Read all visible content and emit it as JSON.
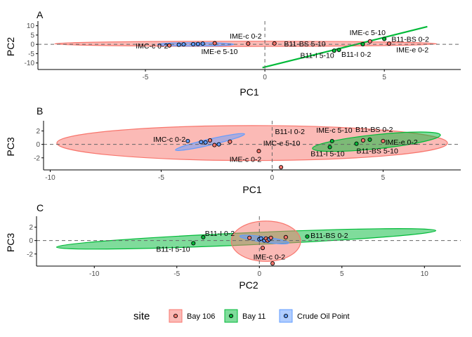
{
  "colors": {
    "bay106_fill": "#F8766D",
    "bay11_fill": "#00BA38",
    "crude_fill": "#619CFF",
    "bay106_line": "#F8766D",
    "bay11_line": "#00BA38",
    "crude_line": "#619CFF",
    "axis": "#000000",
    "tick_label": "#4d4d4d",
    "zero_line": "#666666"
  },
  "legend": {
    "title": "site",
    "items": [
      {
        "label": "Bay 106",
        "color": "#F8766D"
      },
      {
        "label": "Bay 11",
        "color": "#00BA38"
      },
      {
        "label": "Crude Oil Point",
        "color": "#619CFF"
      }
    ]
  },
  "chart_data": [
    {
      "tag": "A",
      "type": "scatter",
      "xlabel": "PC1",
      "ylabel": "PC2",
      "xlim": [
        -9.5,
        8.2
      ],
      "ylim": [
        -13.5,
        11
      ],
      "xticks": [
        -5,
        0,
        5
      ],
      "yticks": [
        10,
        5,
        0,
        -5,
        -10
      ],
      "grid": false,
      "zero_lines": true,
      "ellipses": [
        {
          "site": "Bay 106",
          "cx": -0.8,
          "cy": 0.3,
          "rx": 8.0,
          "ry": 1.4,
          "angle": 0
        },
        {
          "site": "Crude Oil Point",
          "cx": -2.9,
          "cy": 0.0,
          "rx": 1.6,
          "ry": 0.9,
          "angle": 0
        },
        {
          "site": "Bay 11",
          "cx": 0,
          "cy": 0,
          "rx": 0,
          "ry": 0,
          "angle": 0
        }
      ],
      "lines": [
        {
          "site": "Bay 11",
          "x": [
            -0.1,
            6.8
          ],
          "y": [
            -12.5,
            9.5
          ]
        }
      ],
      "points": [
        {
          "site": "Bay 106",
          "x": -4.0,
          "y": -0.6
        },
        {
          "site": "Crude Oil Point",
          "x": -3.6,
          "y": -0.2
        },
        {
          "site": "Crude Oil Point",
          "x": -3.4,
          "y": 0.0
        },
        {
          "site": "Crude Oil Point",
          "x": -3.0,
          "y": 0.1
        },
        {
          "site": "Crude Oil Point",
          "x": -2.8,
          "y": 0.2
        },
        {
          "site": "Crude Oil Point",
          "x": -2.6,
          "y": 0.4
        },
        {
          "site": "Bay 106",
          "x": -2.1,
          "y": 0.6
        },
        {
          "site": "Bay 106",
          "x": -0.7,
          "y": 0.4
        },
        {
          "site": "Bay 106",
          "x": 0.4,
          "y": 0.5
        },
        {
          "site": "Bay 11",
          "x": 2.9,
          "y": -3.4
        },
        {
          "site": "Bay 11",
          "x": 3.1,
          "y": -3.0
        },
        {
          "site": "Bay 11",
          "x": 4.1,
          "y": 0.1
        },
        {
          "site": "Bay 106",
          "x": 4.4,
          "y": 1.6
        },
        {
          "site": "Bay 11",
          "x": 5.0,
          "y": 2.9
        },
        {
          "site": "Bay 106",
          "x": 5.2,
          "y": 0.4
        }
      ],
      "annotations": [
        {
          "text": "IMC-c 0-2",
          "x": -4.05,
          "y": -0.6,
          "anchor": "end",
          "dy": 4
        },
        {
          "text": "IME-c 0-2",
          "x": -0.8,
          "y": 0.8,
          "anchor": "middle",
          "dy": -6
        },
        {
          "text": "IME-e 5-10",
          "x": -1.9,
          "y": -1.4,
          "anchor": "middle",
          "dy": 10
        },
        {
          "text": "B11-BS 5-10",
          "x": 0.8,
          "y": 0.5,
          "anchor": "start",
          "dy": 4
        },
        {
          "text": "IME-c 5-10",
          "x": 4.3,
          "y": 2.0,
          "anchor": "middle",
          "dy": -8
        },
        {
          "text": "B11-BS 0-2",
          "x": 5.3,
          "y": 2.9,
          "anchor": "start",
          "dy": 4
        },
        {
          "text": "IME-e 0-2",
          "x": 5.5,
          "y": 0.3,
          "anchor": "start",
          "dy": 12
        },
        {
          "text": "B11-I 5-10",
          "x": 2.9,
          "y": -3.6,
          "anchor": "end",
          "dy": 10
        },
        {
          "text": "B11-I 0-2",
          "x": 3.2,
          "y": -3.0,
          "anchor": "start",
          "dy": 10
        }
      ]
    },
    {
      "tag": "B",
      "type": "scatter",
      "xlabel": "PC1",
      "ylabel": "PC3",
      "xlim": [
        -10.3,
        8.5
      ],
      "ylim": [
        -3.8,
        3.1
      ],
      "xticks": [
        -10,
        -5,
        0,
        5
      ],
      "yticks": [
        2,
        0,
        -2
      ],
      "grid": false,
      "zero_lines": true,
      "ellipses": [
        {
          "site": "Bay 106",
          "cx": -0.9,
          "cy": 0.2,
          "rx": 8.8,
          "ry": 2.6,
          "angle": 0
        },
        {
          "site": "Bay 11",
          "cx": 4.7,
          "cy": 0.4,
          "rx": 2.9,
          "ry": 1.05,
          "angle": 6
        },
        {
          "site": "Crude Oil Point",
          "cx": -2.8,
          "cy": 0.35,
          "rx": 1.6,
          "ry": 0.45,
          "angle": 13
        }
      ],
      "lines": [],
      "points": [
        {
          "site": "Crude Oil Point",
          "x": -3.8,
          "y": 0.5
        },
        {
          "site": "Crude Oil Point",
          "x": -3.2,
          "y": 0.35
        },
        {
          "site": "Crude Oil Point",
          "x": -3.0,
          "y": 0.3
        },
        {
          "site": "Bay 106",
          "x": -2.8,
          "y": 0.6
        },
        {
          "site": "Bay 106",
          "x": -2.6,
          "y": -0.1
        },
        {
          "site": "Crude Oil Point",
          "x": -2.4,
          "y": 0.0
        },
        {
          "site": "Bay 106",
          "x": -1.9,
          "y": 0.4
        },
        {
          "site": "Bay 106",
          "x": -0.6,
          "y": -1.0
        },
        {
          "site": "Bay 106",
          "x": 0.4,
          "y": -3.4
        },
        {
          "site": "Bay 11",
          "x": 2.6,
          "y": -0.4
        },
        {
          "site": "Bay 11",
          "x": 2.7,
          "y": 0.5
        },
        {
          "site": "Bay 11",
          "x": 3.8,
          "y": 0.1
        },
        {
          "site": "Bay 106",
          "x": 4.1,
          "y": 0.6
        },
        {
          "site": "Bay 11",
          "x": 4.4,
          "y": 0.7
        },
        {
          "site": "Bay 106",
          "x": 5.0,
          "y": 0.5
        }
      ],
      "annotations": [
        {
          "text": "IMC-c 0-2",
          "x": -3.9,
          "y": 0.5,
          "anchor": "end",
          "dy": 1
        },
        {
          "text": "B11-I 0-2",
          "x": 0.8,
          "y": 0.9,
          "anchor": "middle",
          "dy": -6
        },
        {
          "text": "IME-c 5-10",
          "x": 2.8,
          "y": 1.1,
          "anchor": "middle",
          "dy": -6
        },
        {
          "text": "B11-BS 0-2",
          "x": 4.6,
          "y": 1.2,
          "anchor": "middle",
          "dy": -6
        },
        {
          "text": "IME-e 0-2",
          "x": 5.1,
          "y": 0.4,
          "anchor": "start",
          "dy": 4
        },
        {
          "text": "IMC-e 5-10",
          "x": -0.4,
          "y": -0.8,
          "anchor": "start",
          "dy": -6
        },
        {
          "text": "B11-I 5-10",
          "x": 2.5,
          "y": -0.7,
          "anchor": "middle",
          "dy": 10
        },
        {
          "text": "B11-BS 5-10",
          "x": 3.8,
          "y": -0.3,
          "anchor": "start",
          "dy": 10
        },
        {
          "text": "IME-c 0-2",
          "x": -1.2,
          "y": -2.2,
          "anchor": "middle",
          "dy": 4
        }
      ]
    },
    {
      "tag": "C",
      "type": "scatter",
      "xlabel": "PC2",
      "ylabel": "PC3",
      "xlim": [
        -13.5,
        12.2
      ],
      "ylim": [
        -3.8,
        3.2
      ],
      "xticks": [
        -10,
        -5,
        0,
        5,
        10
      ],
      "yticks": [
        2,
        0,
        -2
      ],
      "grid": false,
      "zero_lines": true,
      "ellipses": [
        {
          "site": "Bay 11",
          "cx": -0.8,
          "cy": 0.25,
          "rx": 11.5,
          "ry": 0.9,
          "angle": 2.5
        },
        {
          "site": "Bay 106",
          "cx": 0.4,
          "cy": -0.1,
          "rx": 2.1,
          "ry": 3.0,
          "angle": 0
        },
        {
          "site": "Crude Oil Point",
          "cx": 0.3,
          "cy": 0.15,
          "rx": 1.5,
          "ry": 0.4,
          "angle": -8
        }
      ],
      "lines": [],
      "points": [
        {
          "site": "Bay 11",
          "x": -4.0,
          "y": -0.4
        },
        {
          "site": "Bay 11",
          "x": -3.4,
          "y": 0.5
        },
        {
          "site": "Bay 106",
          "x": -0.6,
          "y": 0.4
        },
        {
          "site": "Crude Oil Point",
          "x": 0.0,
          "y": 0.2
        },
        {
          "site": "Crude Oil Point",
          "x": 0.1,
          "y": 0.3
        },
        {
          "site": "Bay 106",
          "x": 0.2,
          "y": -1.1
        },
        {
          "site": "Crude Oil Point",
          "x": 0.3,
          "y": 0.0
        },
        {
          "site": "Bay 106",
          "x": 0.4,
          "y": 0.3
        },
        {
          "site": "Bay 106",
          "x": 0.5,
          "y": 0.0
        },
        {
          "site": "Crude Oil Point",
          "x": 0.6,
          "y": 0.2
        },
        {
          "site": "Bay 106",
          "x": 0.7,
          "y": 0.4
        },
        {
          "site": "Bay 106",
          "x": 0.8,
          "y": -3.4
        },
        {
          "site": "Bay 106",
          "x": 1.6,
          "y": 0.5
        },
        {
          "site": "Bay 11",
          "x": 2.9,
          "y": 0.6
        }
      ],
      "annotations": [
        {
          "text": "B11-I 0-2",
          "x": -3.3,
          "y": 0.5,
          "anchor": "start",
          "dy": -2
        },
        {
          "text": "B11-I 5-10",
          "x": -4.2,
          "y": -0.4,
          "anchor": "end",
          "dy": 12
        },
        {
          "text": "B11-BS 0-2",
          "x": 3.1,
          "y": 0.6,
          "anchor": "start",
          "dy": 2
        },
        {
          "text": "IME-c 0-2",
          "x": 0.6,
          "y": -2.4,
          "anchor": "middle",
          "dy": 4
        }
      ]
    }
  ]
}
